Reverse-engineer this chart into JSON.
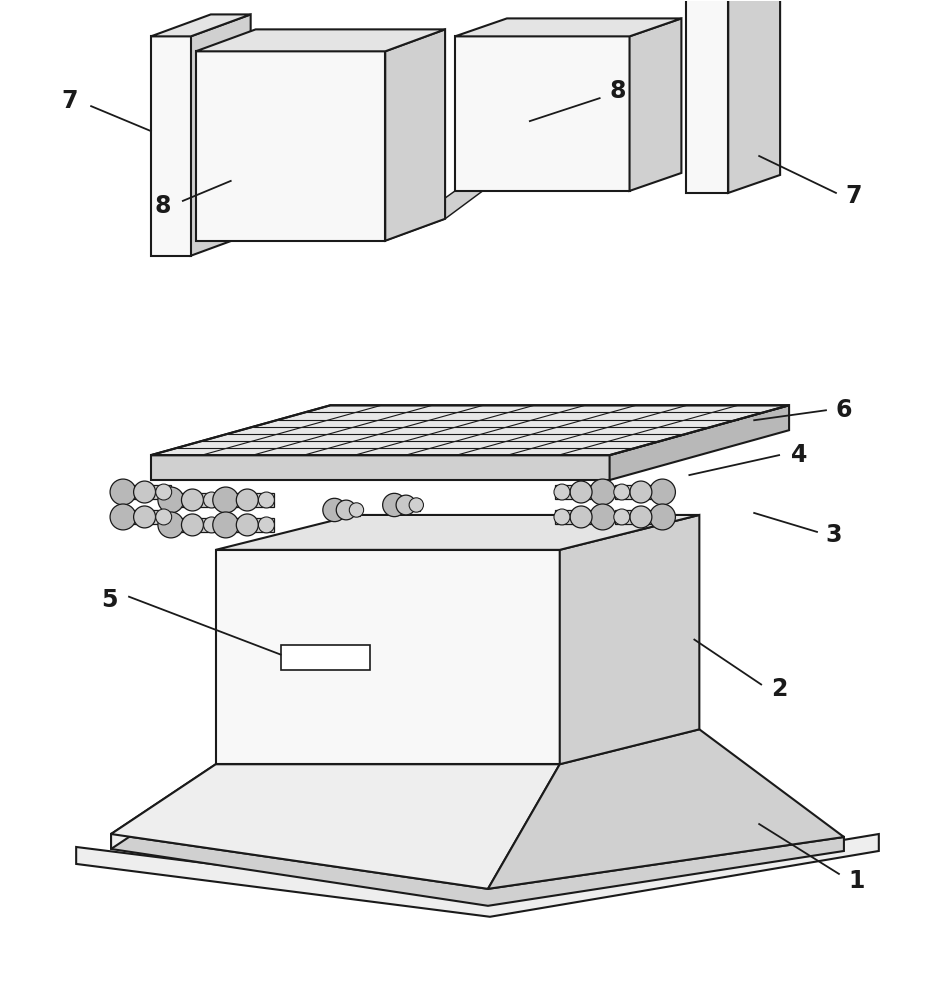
{
  "bg_color": "#ffffff",
  "lc": "#1a1a1a",
  "lw": 1.5,
  "lw_thin": 0.8,
  "fill_white": "#f8f8f8",
  "fill_light": "#eeeeee",
  "fill_mid": "#d0d0d0",
  "fill_dark": "#b8b8b8",
  "fill_side": "#c8c8c8",
  "fill_top": "#e4e4e4"
}
